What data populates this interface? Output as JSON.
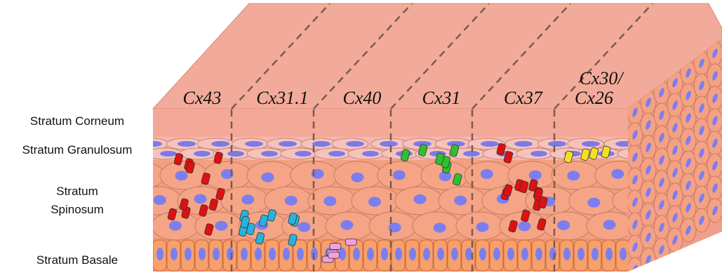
{
  "layers": [
    "Stratum Corneum",
    "Stratum Granulosum",
    [
      "Stratum",
      "Spinosum"
    ],
    "Stratum Basale"
  ],
  "columns": [
    {
      "label": [
        "Cx43"
      ],
      "color": "#e01010"
    },
    {
      "label": [
        "Cx31.1"
      ],
      "color": "#27b3e0"
    },
    {
      "label": [
        "Cx40"
      ],
      "color": "#f0a0e0"
    },
    {
      "label": [
        "Cx31"
      ],
      "color": "#2fc02f"
    },
    {
      "label": [
        "Cx37"
      ],
      "color": "#e01010"
    },
    {
      "label": [
        "Cx30/",
        "Cx26"
      ],
      "color": "#f5e020"
    }
  ]
}
